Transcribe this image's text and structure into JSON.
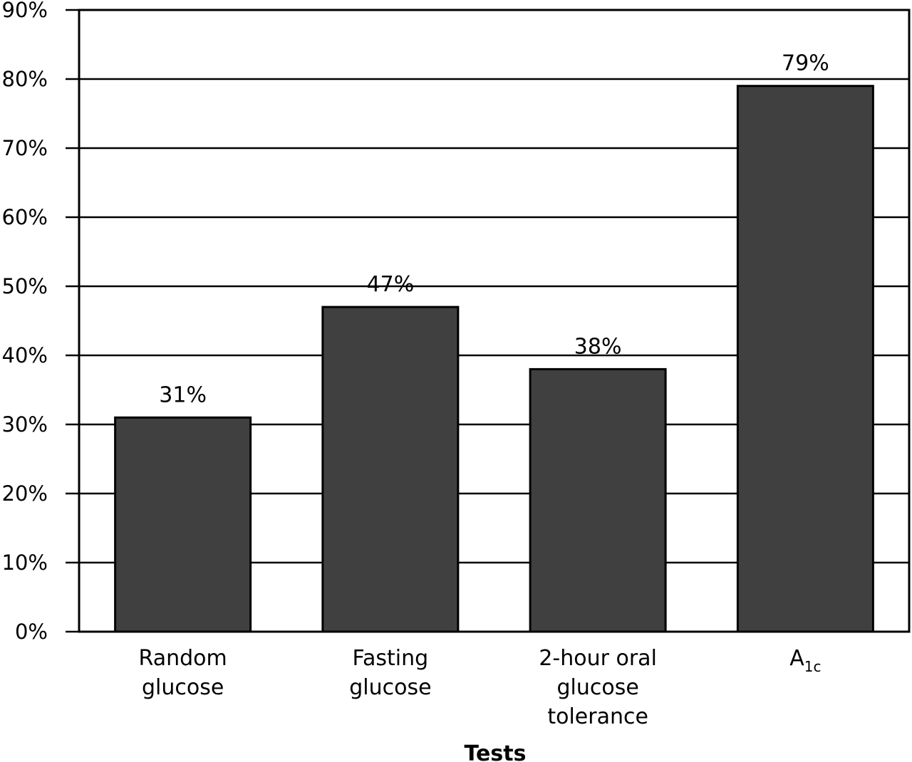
{
  "chart_data": {
    "type": "bar",
    "categories": [
      [
        "Random",
        "glucose"
      ],
      [
        "Fasting",
        "glucose"
      ],
      [
        "2-hour oral",
        "glucose",
        "tolerance"
      ],
      [
        "A1c"
      ]
    ],
    "category_subscripts": [
      null,
      null,
      null,
      {
        "base": "A",
        "sub": "1c"
      }
    ],
    "values": [
      31,
      47,
      38,
      79
    ],
    "value_labels": [
      "31%",
      "47%",
      "38%",
      "79%"
    ],
    "xlabel": "Tests",
    "ylabel": "",
    "ylim": [
      0,
      90
    ],
    "yticks": [
      0,
      10,
      20,
      30,
      40,
      50,
      60,
      70,
      80,
      90
    ],
    "ytick_labels": [
      "0%",
      "10%",
      "20%",
      "30%",
      "40%",
      "50%",
      "60%",
      "70%",
      "80%",
      "90%"
    ],
    "grid": true,
    "bar_color": "#404040"
  }
}
